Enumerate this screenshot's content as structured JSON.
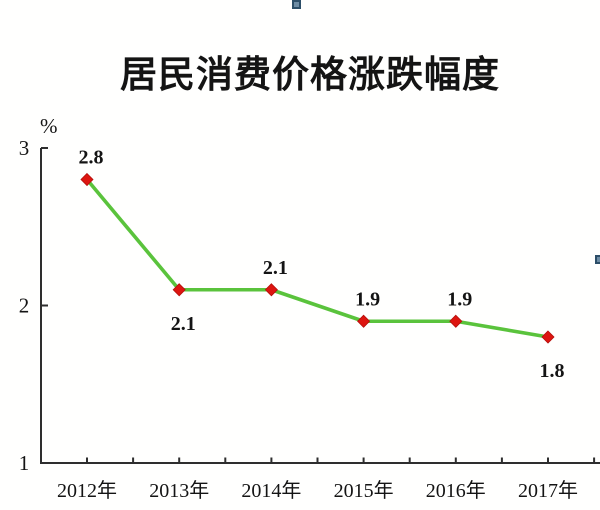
{
  "title": "居民消费价格涨跌幅度",
  "chart_data": {
    "type": "line",
    "title": "居民消费价格涨跌幅度",
    "categories": [
      "2012年",
      "2013年",
      "2014年",
      "2015年",
      "2016年",
      "2017年"
    ],
    "values": [
      2.8,
      2.1,
      2.1,
      1.9,
      1.9,
      1.8
    ],
    "point_labels": [
      "2.8",
      "2.1",
      "2.1",
      "1.9",
      "1.9",
      "1.8"
    ],
    "point_label_positions": [
      "above",
      "below",
      "above",
      "above",
      "above",
      "below"
    ],
    "unit_label": "%",
    "xlabel": "",
    "ylabel": "%",
    "y_ticks": [
      "1",
      "2",
      "3"
    ],
    "ylim": [
      1,
      3
    ],
    "grid": "off",
    "legend": "none",
    "line_color": "#5ac33c",
    "marker_color": "#dd1510",
    "marker_shape": "diamond",
    "axis_color": "#2e2e2e",
    "text_color": "#141414"
  },
  "selection": {
    "handle_fill": "#6d8ca4",
    "handle_border": "#2c4e68"
  }
}
